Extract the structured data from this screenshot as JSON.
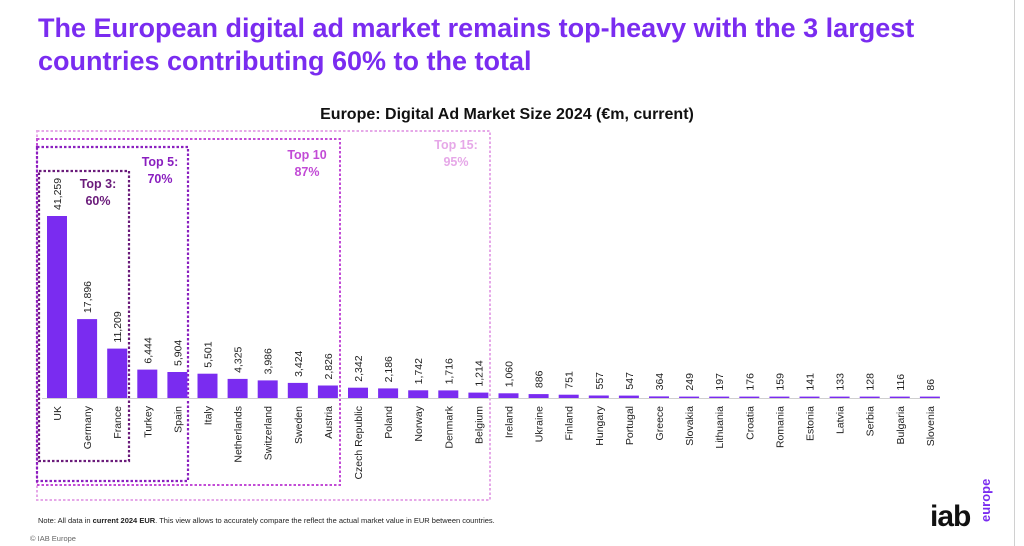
{
  "headline": "The European digital ad market remains top-heavy with the 3 largest countries contributing 60% to the total",
  "footnote": {
    "prefix": "Note: All data in ",
    "bold": "current 2024 EUR",
    "suffix": ". This view allows to accurately compare the reflect the actual market value in EUR between countries."
  },
  "copyright": "© IAB Europe",
  "logo": {
    "main": "iab",
    "sub": "europe"
  },
  "colors": {
    "bar": "#7a2cf0",
    "top3": "#6a1b7a",
    "top5": "#8a1fbf",
    "top10": "#c24bd6",
    "top15": "#e6a8e8",
    "headline": "#7a2cf0"
  },
  "groups": [
    {
      "key": "top3",
      "line1": "Top 3:",
      "line2": "60%"
    },
    {
      "key": "top5",
      "line1": "Top 5:",
      "line2": "70%"
    },
    {
      "key": "top10",
      "line1": "Top 10",
      "line2": "87%"
    },
    {
      "key": "top15",
      "line1": "Top 15:",
      "line2": "95%"
    }
  ],
  "chart_data": {
    "type": "bar",
    "title": "Europe: Digital Ad Market Size 2024 (€m, current)",
    "xlabel": "",
    "ylabel": "",
    "categories": [
      "UK",
      "Germany",
      "France",
      "Turkey",
      "Spain",
      "Italy",
      "Netherlands",
      "Switzerland",
      "Sweden",
      "Austria",
      "Czech Republic",
      "Poland",
      "Norway",
      "Denmark",
      "Belgium",
      "Ireland",
      "Ukraine",
      "Finland",
      "Hungary",
      "Portugal",
      "Greece",
      "Slovakia",
      "Lithuania",
      "Croatia",
      "Romania",
      "Estonia",
      "Latvia",
      "Serbia",
      "Bulgaria",
      "Slovenia"
    ],
    "values": [
      41259,
      17896,
      11209,
      6444,
      5904,
      5501,
      4325,
      3986,
      3424,
      2826,
      2342,
      2186,
      1742,
      1716,
      1214,
      1060,
      886,
      751,
      557,
      547,
      364,
      249,
      197,
      176,
      159,
      141,
      133,
      128,
      116,
      86
    ],
    "labels": [
      "41,259",
      "17,896",
      "11,209",
      "6,444",
      "5,904",
      "5,501",
      "4,325",
      "3,986",
      "3,424",
      "2,826",
      "2,342",
      "2,186",
      "1,742",
      "1,716",
      "1,214",
      "1,060",
      "886",
      "751",
      "557",
      "547",
      "364",
      "249",
      "197",
      "176",
      "159",
      "141",
      "133",
      "128",
      "116",
      "86"
    ],
    "ylim": [
      0,
      41259
    ],
    "grid": false,
    "legend": "none"
  }
}
